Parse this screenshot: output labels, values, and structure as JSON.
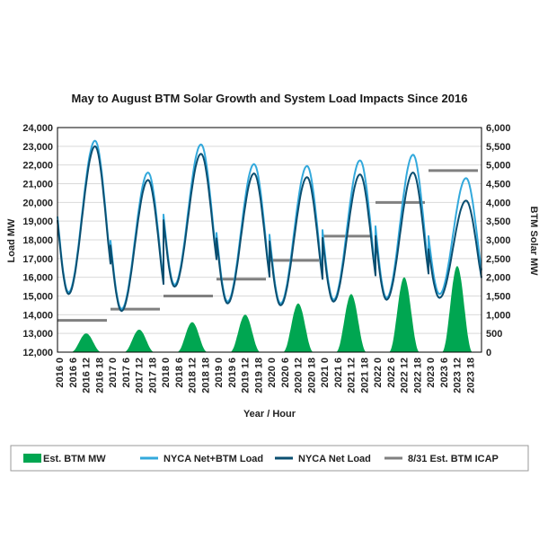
{
  "colors": {
    "btm_area": "#00A651",
    "net_btm_line": "#33A9DC",
    "net_line": "#0B4F71",
    "icap": "#808080",
    "grid": "#d9d9d9",
    "axis": "#000000"
  },
  "chart_data": {
    "type": "line",
    "title": "May to August BTM Solar Growth and System Load Impacts Since 2016",
    "xlabel": "Year / Hour",
    "ylabel_left": "Load MW",
    "ylabel_right": "BTM Solar MW",
    "ylim_left": [
      12000,
      24000
    ],
    "ylim_right": [
      0,
      6000
    ],
    "left_ticks": [
      "12,000",
      "13,000",
      "14,000",
      "15,000",
      "16,000",
      "17,000",
      "18,000",
      "19,000",
      "20,000",
      "21,000",
      "22,000",
      "23,000",
      "24,000"
    ],
    "right_ticks": [
      "0",
      "500",
      "1,000",
      "1,500",
      "2,000",
      "2,500",
      "3,000",
      "3,500",
      "4,000",
      "4,500",
      "5,000",
      "5,500",
      "6,000"
    ],
    "x_tick_labels": [
      "2016 0",
      "2016 6",
      "2016 12",
      "2016 18",
      "2017 0",
      "2017 6",
      "2017 12",
      "2017 18",
      "2018 0",
      "2018 6",
      "2018 12",
      "2018 18",
      "2019 0",
      "2019 6",
      "2019 12",
      "2019 18",
      "2020 0",
      "2020 6",
      "2020 12",
      "2020 18",
      "2021 0",
      "2021 6",
      "2021 12",
      "2021 18",
      "2022 0",
      "2022 6",
      "2022 12",
      "2022 18",
      "2023 0",
      "2023 6",
      "2023 12",
      "2023 18"
    ],
    "grid": true,
    "legend_position": "bottom",
    "years": [
      "2016",
      "2017",
      "2018",
      "2019",
      "2020",
      "2021",
      "2022",
      "2023"
    ],
    "series": [
      {
        "name": "Est. BTM MW",
        "type": "area",
        "axis": "right",
        "peak_values": [
          500,
          600,
          800,
          1000,
          1300,
          1550,
          2000,
          2300
        ]
      },
      {
        "name": "NYCA Net+BTM Load",
        "type": "line",
        "axis": "left",
        "min_values": [
          15200,
          14300,
          15600,
          14700,
          14600,
          14800,
          14900,
          15100
        ],
        "peak_values": [
          23300,
          21600,
          23100,
          22050,
          21950,
          22250,
          22550,
          21300
        ]
      },
      {
        "name": "NYCA Net Load",
        "type": "line",
        "axis": "left",
        "min_values": [
          15100,
          14200,
          15500,
          14600,
          14500,
          14700,
          14800,
          14900
        ],
        "peak_values": [
          23000,
          21200,
          22600,
          21550,
          21350,
          21500,
          21600,
          20100
        ]
      },
      {
        "name": "8/31 Est. BTM ICAP",
        "type": "step",
        "axis": "right",
        "values": [
          850,
          1150,
          1500,
          1950,
          2450,
          3100,
          4000,
          4850
        ]
      }
    ]
  },
  "legend": {
    "items": [
      {
        "label": "Est. BTM MW"
      },
      {
        "label": "NYCA Net+BTM Load"
      },
      {
        "label": "NYCA Net Load"
      },
      {
        "label": "8/31 Est. BTM ICAP"
      }
    ]
  }
}
